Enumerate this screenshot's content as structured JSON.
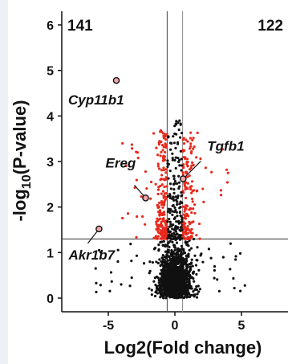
{
  "chart_data": {
    "type": "scatter",
    "title": "",
    "xlabel": "Log2(Fold change)",
    "ylabel": "-log10(P-value)",
    "xlim": [
      -8.5,
      8.5
    ],
    "ylim": [
      -0.3,
      6.3
    ],
    "xticks": [
      -5,
      0,
      5
    ],
    "yticks": [
      0,
      1,
      2,
      3,
      4,
      5,
      6
    ],
    "grid": false,
    "thresholds": {
      "fold_change_lines": [
        -0.58,
        0.58
      ],
      "p_value_line": 1.3
    },
    "quadrant_counts": {
      "left": "141",
      "right": "122"
    },
    "colors": {
      "significant": "#e8291c",
      "not_significant": "#111111",
      "highlight_fill": "#f2a6a6"
    },
    "highlighted_genes": [
      {
        "name": "Cyp11b1",
        "x": -4.4,
        "y": 4.78
      },
      {
        "name": "Tgfb1",
        "x": 0.62,
        "y": 2.62
      },
      {
        "name": "Ereg",
        "x": -2.2,
        "y": 2.2
      },
      {
        "name": "Akr1b7",
        "x": -5.7,
        "y": 1.52
      }
    ],
    "points_description": "Volcano plot: dense black cloud of non-significant genes near x=0 with low -log10(P); red significant genes above the P threshold outside the fold-change lines."
  }
}
